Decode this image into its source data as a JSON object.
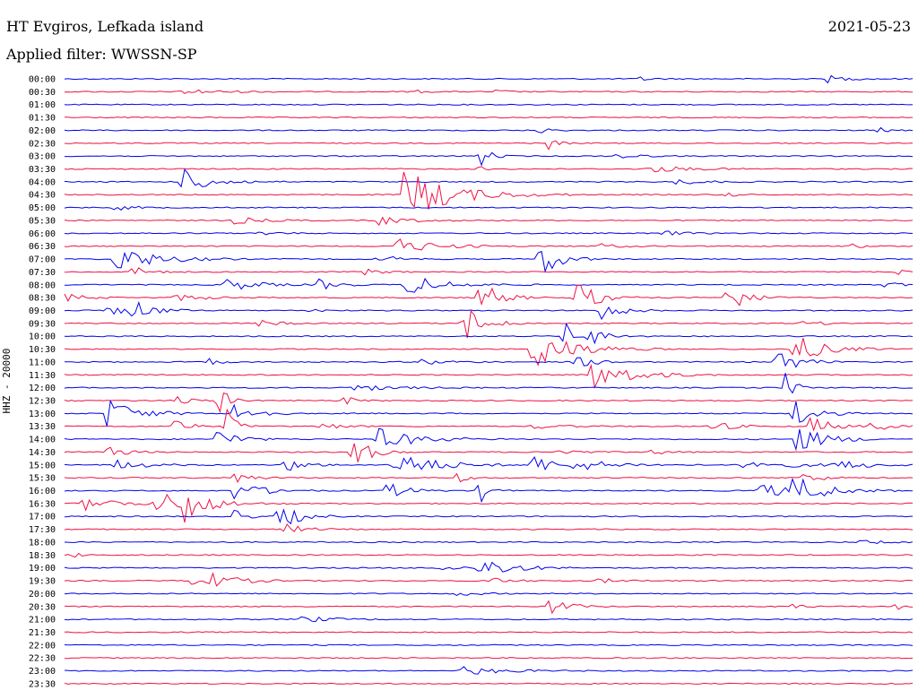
{
  "header": {
    "title": "HT Evgiros, Lefkada island",
    "filter_label": "Applied filter: WWSSN-SP",
    "date": "2021-05-23"
  },
  "colors": {
    "odd_traces": "#0000ee",
    "even_traces": "#ee1144"
  },
  "chart_data": {
    "type": "line",
    "title": "HT Evgiros, Lefkada island",
    "ylabel": "HHZ - 20000",
    "xlabel": "",
    "y_tick_labels": [
      "00:00",
      "00:30",
      "01:00",
      "01:30",
      "02:00",
      "02:30",
      "03:00",
      "03:30",
      "04:00",
      "04:30",
      "05:00",
      "05:30",
      "06:00",
      "06:30",
      "07:00",
      "07:30",
      "08:00",
      "08:30",
      "09:00",
      "09:30",
      "10:00",
      "10:30",
      "11:00",
      "11:30",
      "12:00",
      "12:30",
      "13:00",
      "13:30",
      "14:00",
      "14:30",
      "15:00",
      "15:30",
      "16:00",
      "16:30",
      "17:00",
      "17:30",
      "18:00",
      "18:30",
      "19:00",
      "19:30",
      "20:00",
      "20:30",
      "21:00",
      "21:30",
      "22:00",
      "22:30",
      "23:00",
      "23:30"
    ],
    "trace_duration_minutes": 30,
    "line_colors": [
      "blue",
      "red"
    ],
    "events": [
      {
        "row": 0,
        "t": 0.68,
        "a": 3,
        "d": 0.01
      },
      {
        "row": 0,
        "t": 0.9,
        "a": 4,
        "d": 0.02
      },
      {
        "row": 1,
        "t": 0.14,
        "a": 3,
        "d": 0.04
      },
      {
        "row": 1,
        "t": 0.41,
        "a": 3,
        "d": 0.01
      },
      {
        "row": 1,
        "t": 0.51,
        "a": 3,
        "d": 0.01
      },
      {
        "row": 4,
        "t": 0.56,
        "a": 4,
        "d": 0.01
      },
      {
        "row": 4,
        "t": 0.96,
        "a": 3,
        "d": 0.01
      },
      {
        "row": 5,
        "t": 0.57,
        "a": 7,
        "d": 0.01
      },
      {
        "row": 6,
        "t": 0.49,
        "a": 14,
        "d": 0.01
      },
      {
        "row": 6,
        "t": 0.65,
        "a": 4,
        "d": 0.02
      },
      {
        "row": 7,
        "t": 0.49,
        "a": 3,
        "d": 0.01
      },
      {
        "row": 7,
        "t": 0.69,
        "a": 4,
        "d": 0.04
      },
      {
        "row": 8,
        "t": 0.14,
        "a": 14,
        "d": 0.03
      },
      {
        "row": 8,
        "t": 0.72,
        "a": 3,
        "d": 0.03
      },
      {
        "row": 9,
        "t": 0.4,
        "a": 30,
        "d": 0.05
      },
      {
        "row": 9,
        "t": 0.78,
        "a": 3,
        "d": 0.01
      },
      {
        "row": 10,
        "t": 0.06,
        "a": 3,
        "d": 0.02
      },
      {
        "row": 11,
        "t": 0.2,
        "a": 4,
        "d": 0.03
      },
      {
        "row": 11,
        "t": 0.37,
        "a": 5,
        "d": 0.03
      },
      {
        "row": 12,
        "t": 0.23,
        "a": 3,
        "d": 0.02
      },
      {
        "row": 12,
        "t": 0.7,
        "a": 4,
        "d": 0.02
      },
      {
        "row": 13,
        "t": 0.39,
        "a": 9,
        "d": 0.04
      },
      {
        "row": 13,
        "t": 0.63,
        "a": 3,
        "d": 0.02
      },
      {
        "row": 13,
        "t": 0.93,
        "a": 3,
        "d": 0.01
      },
      {
        "row": 14,
        "t": 0.06,
        "a": 16,
        "d": 0.04
      },
      {
        "row": 14,
        "t": 0.37,
        "a": 5,
        "d": 0.02
      },
      {
        "row": 14,
        "t": 0.56,
        "a": 22,
        "d": 0.02
      },
      {
        "row": 15,
        "t": 0.08,
        "a": 6,
        "d": 0.02
      },
      {
        "row": 15,
        "t": 0.35,
        "a": 4,
        "d": 0.02
      },
      {
        "row": 15,
        "t": 0.98,
        "a": 4,
        "d": 0.01
      },
      {
        "row": 16,
        "t": 0.19,
        "a": 8,
        "d": 0.03
      },
      {
        "row": 16,
        "t": 0.3,
        "a": 6,
        "d": 0.02
      },
      {
        "row": 16,
        "t": 0.4,
        "a": 12,
        "d": 0.04
      },
      {
        "row": 16,
        "t": 0.96,
        "a": 4,
        "d": 0.02
      },
      {
        "row": 17,
        "t": 0.0,
        "a": 5,
        "d": 0.02
      },
      {
        "row": 17,
        "t": 0.13,
        "a": 4,
        "d": 0.03
      },
      {
        "row": 17,
        "t": 0.49,
        "a": 20,
        "d": 0.02
      },
      {
        "row": 17,
        "t": 0.6,
        "a": 25,
        "d": 0.02
      },
      {
        "row": 17,
        "t": 0.78,
        "a": 20,
        "d": 0.02
      },
      {
        "row": 18,
        "t": 0.05,
        "a": 5,
        "d": 0.03
      },
      {
        "row": 18,
        "t": 0.08,
        "a": 11,
        "d": 0.02
      },
      {
        "row": 18,
        "t": 0.29,
        "a": 3,
        "d": 0.01
      },
      {
        "row": 18,
        "t": 0.63,
        "a": 14,
        "d": 0.02
      },
      {
        "row": 19,
        "t": 0.23,
        "a": 4,
        "d": 0.02
      },
      {
        "row": 19,
        "t": 0.47,
        "a": 24,
        "d": 0.02
      },
      {
        "row": 19,
        "t": 0.87,
        "a": 3,
        "d": 0.02
      },
      {
        "row": 20,
        "t": 0.59,
        "a": 15,
        "d": 0.02
      },
      {
        "row": 20,
        "t": 0.62,
        "a": 6,
        "d": 0.02
      },
      {
        "row": 21,
        "t": 0.55,
        "a": 25,
        "d": 0.04
      },
      {
        "row": 21,
        "t": 0.86,
        "a": 17,
        "d": 0.03
      },
      {
        "row": 22,
        "t": 0.17,
        "a": 5,
        "d": 0.01
      },
      {
        "row": 22,
        "t": 0.42,
        "a": 3,
        "d": 0.03
      },
      {
        "row": 22,
        "t": 0.6,
        "a": 8,
        "d": 0.02
      },
      {
        "row": 22,
        "t": 0.84,
        "a": 17,
        "d": 0.02
      },
      {
        "row": 23,
        "t": 0.62,
        "a": 18,
        "d": 0.04
      },
      {
        "row": 24,
        "t": 0.34,
        "a": 4,
        "d": 0.04
      },
      {
        "row": 24,
        "t": 0.85,
        "a": 18,
        "d": 0.01
      },
      {
        "row": 25,
        "t": 0.13,
        "a": 15,
        "d": 0.01
      },
      {
        "row": 25,
        "t": 0.18,
        "a": 22,
        "d": 0.01
      },
      {
        "row": 25,
        "t": 0.33,
        "a": 6,
        "d": 0.01
      },
      {
        "row": 26,
        "t": 0.05,
        "a": 18,
        "d": 0.03
      },
      {
        "row": 26,
        "t": 0.2,
        "a": 15,
        "d": 0.02
      },
      {
        "row": 26,
        "t": 0.86,
        "a": 20,
        "d": 0.02
      },
      {
        "row": 27,
        "t": 0.13,
        "a": 18,
        "d": 0.01
      },
      {
        "row": 27,
        "t": 0.19,
        "a": 22,
        "d": 0.01
      },
      {
        "row": 27,
        "t": 0.3,
        "a": 5,
        "d": 0.02
      },
      {
        "row": 27,
        "t": 0.55,
        "a": 3,
        "d": 0.03
      },
      {
        "row": 27,
        "t": 0.76,
        "a": 8,
        "d": 0.02
      },
      {
        "row": 27,
        "t": 0.88,
        "a": 12,
        "d": 0.02
      },
      {
        "row": 27,
        "t": 0.95,
        "a": 5,
        "d": 0.03
      },
      {
        "row": 28,
        "t": 0.18,
        "a": 13,
        "d": 0.02
      },
      {
        "row": 28,
        "t": 0.37,
        "a": 12,
        "d": 0.04
      },
      {
        "row": 28,
        "t": 0.86,
        "a": 17,
        "d": 0.03
      },
      {
        "row": 29,
        "t": 0.05,
        "a": 6,
        "d": 0.02
      },
      {
        "row": 29,
        "t": 0.34,
        "a": 17,
        "d": 0.02
      },
      {
        "row": 29,
        "t": 0.58,
        "a": 4,
        "d": 0.02
      },
      {
        "row": 29,
        "t": 0.69,
        "a": 3,
        "d": 0.02
      },
      {
        "row": 30,
        "t": 0.06,
        "a": 6,
        "d": 0.03
      },
      {
        "row": 30,
        "t": 0.26,
        "a": 8,
        "d": 0.02
      },
      {
        "row": 30,
        "t": 0.39,
        "a": 16,
        "d": 0.04
      },
      {
        "row": 30,
        "t": 0.55,
        "a": 14,
        "d": 0.02
      },
      {
        "row": 30,
        "t": 0.6,
        "a": 7,
        "d": 0.04
      },
      {
        "row": 30,
        "t": 0.8,
        "a": 6,
        "d": 0.05
      },
      {
        "row": 30,
        "t": 0.91,
        "a": 6,
        "d": 0.03
      },
      {
        "row": 31,
        "t": 0.2,
        "a": 6,
        "d": 0.02
      },
      {
        "row": 31,
        "t": 0.46,
        "a": 8,
        "d": 0.01
      },
      {
        "row": 31,
        "t": 0.87,
        "a": 6,
        "d": 0.02
      },
      {
        "row": 32,
        "t": 0.2,
        "a": 10,
        "d": 0.03
      },
      {
        "row": 32,
        "t": 0.38,
        "a": 10,
        "d": 0.02
      },
      {
        "row": 32,
        "t": 0.49,
        "a": 14,
        "d": 0.01
      },
      {
        "row": 32,
        "t": 0.82,
        "a": 8,
        "d": 0.04
      },
      {
        "row": 32,
        "t": 0.86,
        "a": 16,
        "d": 0.03
      },
      {
        "row": 33,
        "t": 0.02,
        "a": 8,
        "d": 0.04
      },
      {
        "row": 33,
        "t": 0.11,
        "a": 14,
        "d": 0.04
      },
      {
        "row": 33,
        "t": 0.14,
        "a": 18,
        "d": 0.02
      },
      {
        "row": 34,
        "t": 0.2,
        "a": 12,
        "d": 0.01
      },
      {
        "row": 34,
        "t": 0.25,
        "a": 18,
        "d": 0.02
      },
      {
        "row": 35,
        "t": 0.26,
        "a": 6,
        "d": 0.02
      },
      {
        "row": 36,
        "t": 0.94,
        "a": 3,
        "d": 0.02
      },
      {
        "row": 37,
        "t": 0.01,
        "a": 3,
        "d": 0.01
      },
      {
        "row": 38,
        "t": 0.44,
        "a": 4,
        "d": 0.02
      },
      {
        "row": 38,
        "t": 0.49,
        "a": 14,
        "d": 0.03
      },
      {
        "row": 39,
        "t": 0.15,
        "a": 18,
        "d": 0.03
      },
      {
        "row": 39,
        "t": 0.5,
        "a": 4,
        "d": 0.02
      },
      {
        "row": 39,
        "t": 0.63,
        "a": 3,
        "d": 0.02
      },
      {
        "row": 40,
        "t": 0.46,
        "a": 3,
        "d": 0.02
      },
      {
        "row": 41,
        "t": 0.57,
        "a": 11,
        "d": 0.02
      },
      {
        "row": 41,
        "t": 0.86,
        "a": 4,
        "d": 0.01
      },
      {
        "row": 41,
        "t": 0.98,
        "a": 4,
        "d": 0.01
      },
      {
        "row": 42,
        "t": 0.28,
        "a": 4,
        "d": 0.03
      },
      {
        "row": 46,
        "t": 0.47,
        "a": 5,
        "d": 0.04
      }
    ]
  }
}
